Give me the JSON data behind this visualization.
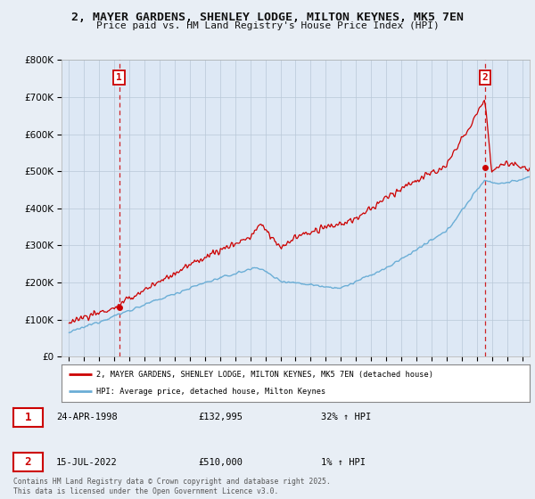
{
  "title_line1": "2, MAYER GARDENS, SHENLEY LODGE, MILTON KEYNES, MK5 7EN",
  "title_line2": "Price paid vs. HM Land Registry's House Price Index (HPI)",
  "background_color": "#e8eef5",
  "plot_background": "#dde8f5",
  "hpi_line_color": "#6baed6",
  "price_line_color": "#cc0000",
  "sale1_date_x": 1998.31,
  "sale1_price": 132995,
  "sale1_label": "1",
  "sale2_date_x": 2022.54,
  "sale2_price": 510000,
  "sale2_label": "2",
  "ylim_min": 0,
  "ylim_max": 800000,
  "xlim_min": 1994.5,
  "xlim_max": 2025.5,
  "legend_entry1": "2, MAYER GARDENS, SHENLEY LODGE, MILTON KEYNES, MK5 7EN (detached house)",
  "legend_entry2": "HPI: Average price, detached house, Milton Keynes",
  "annotation1_date": "24-APR-1998",
  "annotation1_price": "£132,995",
  "annotation1_hpi": "32% ↑ HPI",
  "annotation2_date": "15-JUL-2022",
  "annotation2_price": "£510,000",
  "annotation2_hpi": "1% ↑ HPI",
  "footer": "Contains HM Land Registry data © Crown copyright and database right 2025.\nThis data is licensed under the Open Government Licence v3.0."
}
